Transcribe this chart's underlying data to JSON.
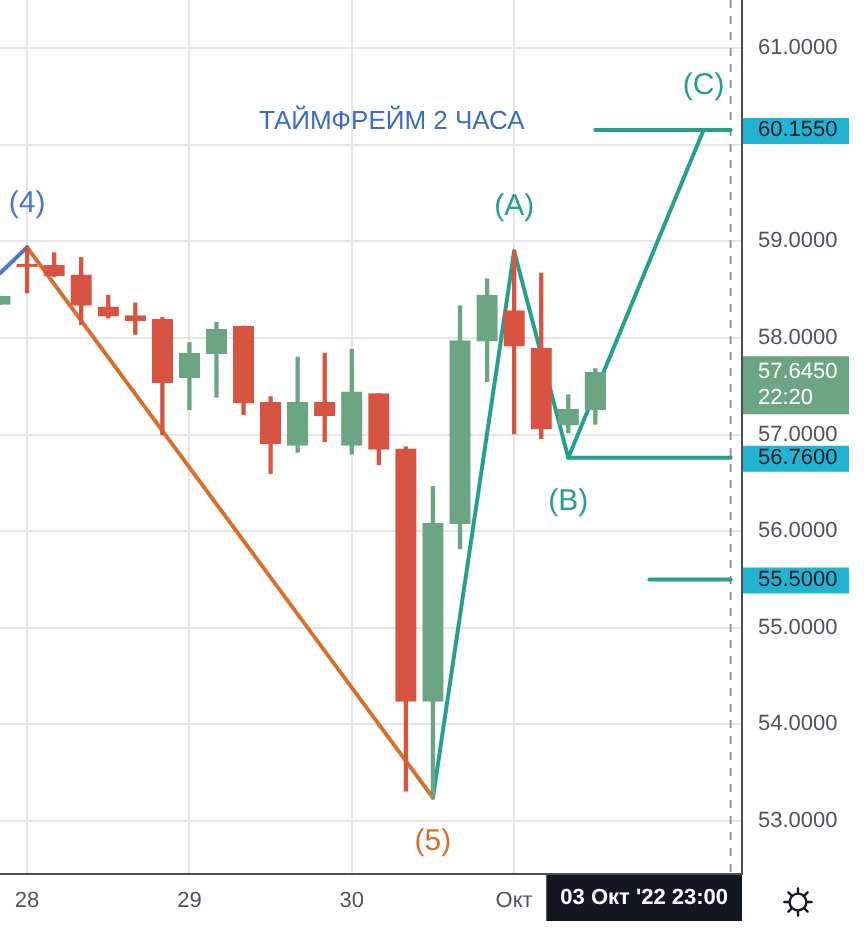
{
  "chart_data": {
    "type": "candlestick",
    "title": "ТАЙМФРЕЙМ 2 ЧАСА",
    "categories": [
      null,
      "28",
      null,
      null,
      null,
      null,
      null,
      "29",
      null,
      null,
      null,
      null,
      null,
      "30",
      null,
      null,
      null,
      null,
      null,
      "Окт",
      null,
      null,
      null,
      null,
      null,
      null,
      null,
      null
    ],
    "ohlc": [
      [
        58.35,
        58.43,
        58.35,
        58.43
      ],
      [
        58.76,
        58.94,
        58.47,
        58.74
      ],
      [
        58.75,
        58.88,
        58.64,
        58.65
      ],
      [
        58.65,
        58.83,
        58.14,
        58.34
      ],
      [
        58.32,
        58.44,
        58.21,
        58.23
      ],
      [
        58.23,
        58.36,
        58.04,
        58.18
      ],
      [
        58.19,
        58.21,
        57.0,
        57.54
      ],
      [
        57.59,
        57.95,
        57.26,
        57.84
      ],
      [
        57.84,
        58.16,
        57.39,
        58.09
      ],
      [
        58.12,
        58.12,
        57.21,
        57.33
      ],
      [
        57.33,
        57.39,
        56.6,
        56.91
      ],
      [
        56.89,
        57.8,
        56.82,
        57.33
      ],
      [
        57.33,
        57.84,
        56.93,
        57.2
      ],
      [
        56.89,
        57.88,
        56.8,
        57.44
      ],
      [
        57.42,
        57.42,
        56.69,
        56.85
      ],
      [
        56.85,
        56.87,
        53.31,
        54.24
      ],
      [
        54.24,
        56.46,
        53.24,
        56.08
      ],
      [
        56.08,
        58.33,
        55.82,
        57.97
      ],
      [
        57.97,
        58.61,
        57.55,
        58.44
      ],
      [
        58.28,
        58.9,
        57.01,
        57.92
      ],
      [
        57.89,
        58.67,
        56.96,
        57.06
      ],
      [
        57.1,
        57.41,
        57.02,
        57.26
      ],
      [
        57.26,
        57.68,
        57.11,
        57.645
      ],
      null,
      null,
      null,
      null,
      null
    ],
    "colors": [
      "#6ba583",
      "#d75442",
      "#d75442",
      "#d75442",
      "#d75442",
      "#d75442",
      "#d75442",
      "#6ba583",
      "#6ba583",
      "#d75442",
      "#d75442",
      "#6ba583",
      "#d75442",
      "#6ba583",
      "#d75442",
      "#d75442",
      "#6ba583",
      "#6ba583",
      "#6ba583",
      "#d75442",
      "#d75442",
      "#6ba583",
      "#6ba583",
      null,
      null,
      null,
      null,
      null
    ],
    "series": [
      {
        "type": "line",
        "color": "#4c74d0",
        "values": [
          58.67,
          58.94,
          null,
          null,
          null,
          null,
          null,
          null,
          null,
          null,
          null,
          null,
          null,
          null,
          null,
          null,
          null,
          null,
          null,
          null,
          null,
          null,
          null,
          null,
          null,
          null,
          null,
          null
        ]
      },
      {
        "type": "line",
        "color": "#d6702c",
        "values": [
          null,
          58.94,
          null,
          null,
          null,
          null,
          null,
          null,
          null,
          null,
          null,
          null,
          null,
          null,
          null,
          null,
          53.24,
          null,
          null,
          null,
          null,
          null,
          null,
          null,
          null,
          null,
          null,
          null
        ]
      },
      {
        "type": "line",
        "color": "#26a08c",
        "values": [
          null,
          null,
          null,
          null,
          null,
          null,
          null,
          null,
          null,
          null,
          null,
          null,
          null,
          null,
          null,
          null,
          53.24,
          null,
          null,
          58.9,
          null,
          56.76,
          null,
          null,
          null,
          null,
          60.155,
          null
        ]
      },
      {
        "type": "line",
        "color": "#26a08c",
        "values": [
          null,
          null,
          null,
          null,
          null,
          null,
          null,
          null,
          null,
          null,
          null,
          null,
          null,
          null,
          null,
          null,
          null,
          null,
          null,
          null,
          null,
          null,
          60.155,
          null,
          null,
          null,
          null,
          60.155
        ]
      },
      {
        "type": "line",
        "color": "#26a08c",
        "values": [
          null,
          null,
          null,
          null,
          null,
          null,
          null,
          null,
          null,
          null,
          null,
          null,
          null,
          null,
          null,
          null,
          null,
          null,
          null,
          null,
          null,
          56.76,
          null,
          null,
          null,
          null,
          null,
          56.76
        ]
      },
      {
        "type": "line",
        "color": "#26a08c",
        "values": [
          null,
          null,
          null,
          null,
          null,
          null,
          null,
          null,
          null,
          null,
          null,
          null,
          null,
          null,
          null,
          null,
          null,
          null,
          null,
          null,
          null,
          null,
          null,
          null,
          55.5,
          null,
          null,
          55.5
        ]
      }
    ],
    "ylim": [
      52.45,
      61.5
    ],
    "yticks": [
      {
        "value": 53,
        "label": "53.0000"
      },
      {
        "value": 54,
        "label": "54.0000"
      },
      {
        "value": 55,
        "label": "55.0000"
      },
      {
        "value": 55.5,
        "label": "55.5000"
      },
      {
        "value": 56,
        "label": "56.0000"
      },
      {
        "value": 56.76,
        "label": "56.7600"
      },
      {
        "value": 57,
        "label": "57.0000"
      },
      {
        "value": 57.645,
        "label": "57.6450"
      },
      {
        "value": 58,
        "label": "58.0000"
      },
      {
        "value": 59,
        "label": "59.0000"
      },
      {
        "value": 60,
        "label": null
      },
      {
        "value": 60.155,
        "label": "60.1550"
      },
      {
        "value": 61,
        "label": "61.0000"
      }
    ],
    "grid": true,
    "ref_lines": [
      {
        "axis": "x",
        "label": "03 Окт '22 23:00",
        "color": "#9598a1",
        "line_style": "dashed"
      }
    ],
    "annotations": [
      {
        "text": "(4)",
        "x": "28",
        "y": 58.94
      },
      {
        "text": "(5)",
        "y": 53.24
      },
      {
        "text": "(A)",
        "y": 58.9
      },
      {
        "text": "(B)",
        "y": 56.76
      },
      {
        "text": "(C)",
        "y": 60.155
      },
      "22:20"
    ]
  }
}
